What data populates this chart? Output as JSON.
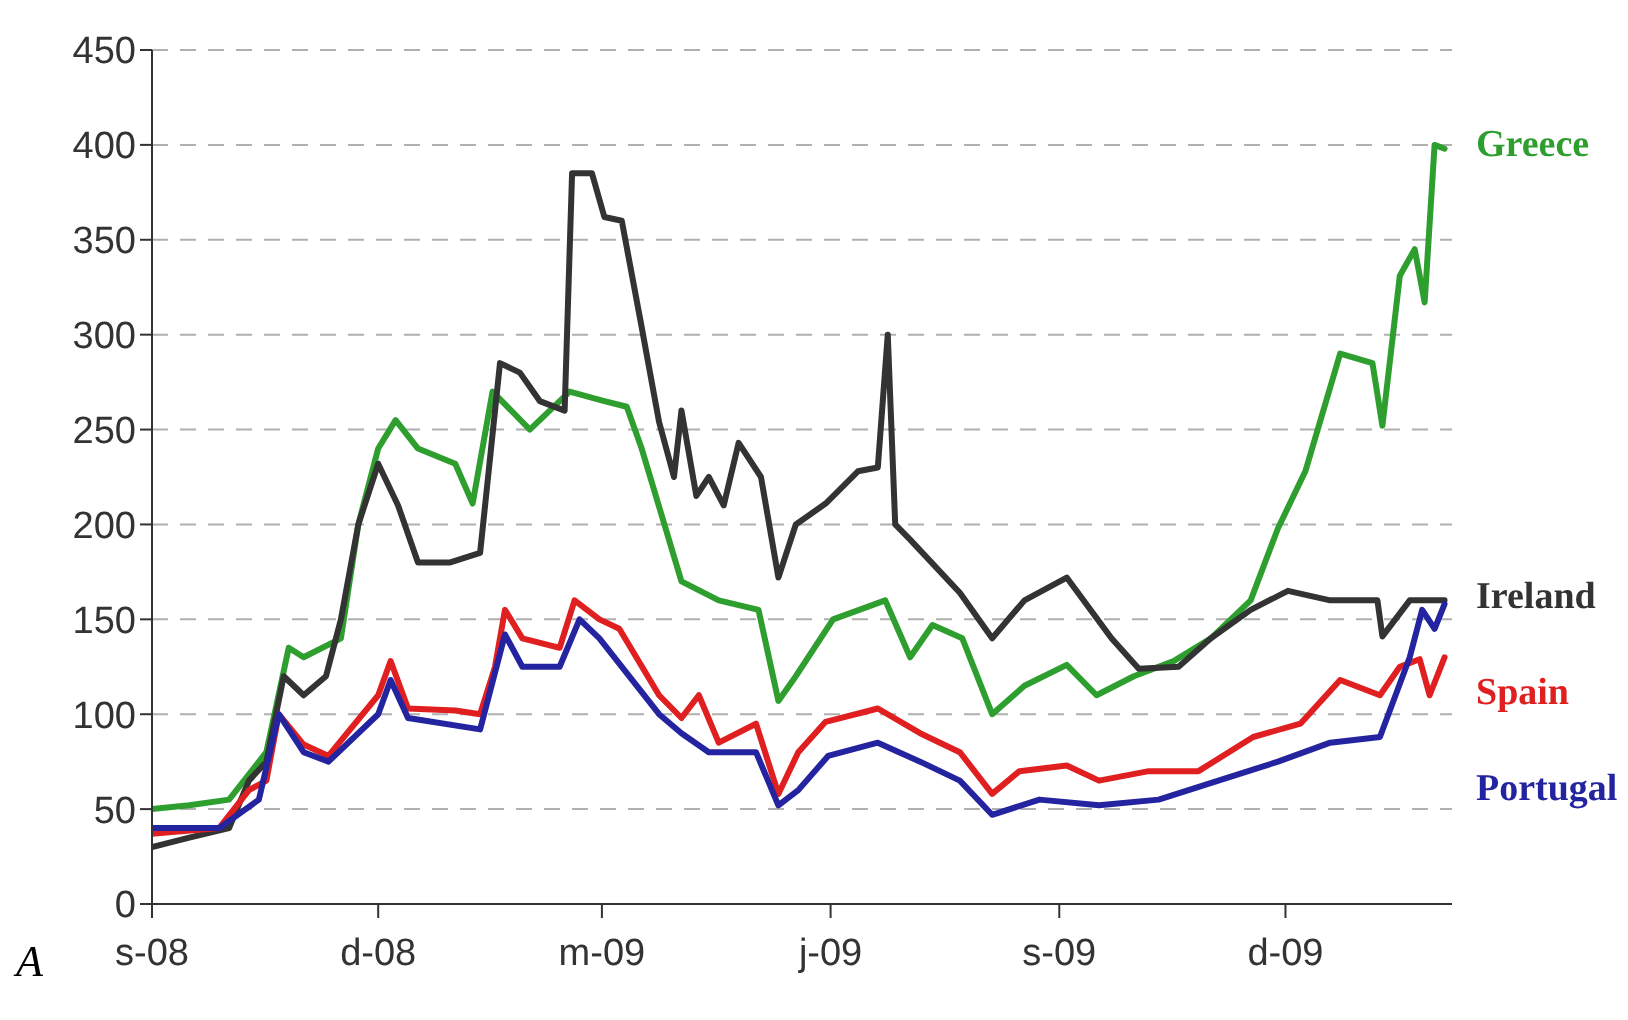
{
  "chart_data": {
    "type": "line",
    "annotations": [
      "A"
    ],
    "xlim": [
      "2008-09-01",
      "2010-02-06"
    ],
    "xticks": [
      {
        "value": "2008-09-01",
        "label": "s-08"
      },
      {
        "value": "2008-12-01",
        "label": "d-08"
      },
      {
        "value": "2009-03-01",
        "label": "m-09"
      },
      {
        "value": "2009-06-01",
        "label": "j-09"
      },
      {
        "value": "2009-09-01",
        "label": "s-09"
      },
      {
        "value": "2009-12-01",
        "label": "d-09"
      }
    ],
    "ylim": [
      0,
      450
    ],
    "yticks": [
      0,
      50,
      100,
      150,
      200,
      250,
      300,
      350,
      400,
      450
    ],
    "grid": "y",
    "line_style": "solid",
    "series": [
      {
        "name": "Greece",
        "color": "#2e9e2e",
        "x": [
          "2008-09-01",
          "2008-09-16",
          "2008-10-02",
          "2008-10-17",
          "2008-10-26",
          "2008-11-01",
          "2008-11-16",
          "2008-11-23",
          "2008-12-01",
          "2008-12-08",
          "2008-12-17",
          "2009-01-01",
          "2009-01-08",
          "2009-01-16",
          "2009-01-31",
          "2009-02-16",
          "2009-03-02",
          "2009-03-11",
          "2009-03-17",
          "2009-04-02",
          "2009-04-17",
          "2009-05-03",
          "2009-05-11",
          "2009-05-18",
          "2009-06-02",
          "2009-06-23",
          "2009-07-03",
          "2009-07-12",
          "2009-07-24",
          "2009-08-05",
          "2009-08-18",
          "2009-09-04",
          "2009-09-16",
          "2009-10-01",
          "2009-10-17",
          "2009-11-01",
          "2009-11-17",
          "2009-11-28",
          "2009-12-09",
          "2009-12-23",
          "2010-01-05",
          "2010-01-09",
          "2010-01-16",
          "2010-01-22",
          "2010-01-26",
          "2010-01-30",
          "2010-02-03"
        ],
        "values": [
          50,
          52,
          55,
          80,
          135,
          130,
          140,
          200,
          240,
          255,
          240,
          232,
          211,
          270,
          250,
          270,
          265,
          262,
          240,
          170,
          160,
          155,
          107,
          120,
          150,
          160,
          130,
          147,
          140,
          100,
          115,
          126,
          110,
          120,
          128,
          140,
          160,
          198,
          228,
          290,
          285,
          252,
          331,
          345,
          317,
          400,
          398
        ]
      },
      {
        "name": "Ireland",
        "color": "#333333",
        "x": [
          "2008-09-01",
          "2008-09-16",
          "2008-10-02",
          "2008-10-10",
          "2008-10-17",
          "2008-10-24",
          "2008-11-01",
          "2008-11-10",
          "2008-11-16",
          "2008-11-23",
          "2008-12-01",
          "2008-12-09",
          "2008-12-17",
          "2008-12-30",
          "2009-01-11",
          "2009-01-19",
          "2009-01-27",
          "2009-02-04",
          "2009-02-14",
          "2009-02-17",
          "2009-02-25",
          "2009-03-02",
          "2009-03-09",
          "2009-03-17",
          "2009-03-24",
          "2009-03-30",
          "2009-04-02",
          "2009-04-08",
          "2009-04-13",
          "2009-04-19",
          "2009-04-25",
          "2009-05-04",
          "2009-05-11",
          "2009-05-18",
          "2009-05-30",
          "2009-06-12",
          "2009-06-20",
          "2009-06-24",
          "2009-06-27",
          "2009-07-03",
          "2009-07-23",
          "2009-08-05",
          "2009-08-18",
          "2009-09-04",
          "2009-09-22",
          "2009-10-03",
          "2009-10-19",
          "2009-11-01",
          "2009-11-17",
          "2009-12-02",
          "2009-12-19",
          "2010-01-07",
          "2010-01-09",
          "2010-01-20",
          "2010-02-03"
        ],
        "values": [
          30,
          35,
          40,
          65,
          75,
          120,
          110,
          120,
          150,
          200,
          232,
          210,
          180,
          180,
          185,
          285,
          280,
          265,
          260,
          385,
          385,
          362,
          360,
          304,
          254,
          225,
          260,
          215,
          225,
          210,
          243,
          225,
          172,
          200,
          211,
          228,
          230,
          300,
          200,
          192,
          164,
          140,
          160,
          172,
          140,
          124,
          125,
          140,
          155,
          165,
          160,
          160,
          141,
          160,
          160
        ]
      },
      {
        "name": "Spain",
        "color": "#e02020",
        "x": [
          "2008-09-01",
          "2008-09-28",
          "2008-10-10",
          "2008-10-17",
          "2008-10-22",
          "2008-11-01",
          "2008-11-11",
          "2008-12-01",
          "2008-12-06",
          "2008-12-13",
          "2009-01-01",
          "2009-01-11",
          "2009-01-17",
          "2009-01-21",
          "2009-01-28",
          "2009-02-12",
          "2009-02-18",
          "2009-02-28",
          "2009-03-08",
          "2009-03-24",
          "2009-04-02",
          "2009-04-09",
          "2009-04-17",
          "2009-05-02",
          "2009-05-11",
          "2009-05-19",
          "2009-05-30",
          "2009-06-20",
          "2009-07-07",
          "2009-07-23",
          "2009-08-05",
          "2009-08-16",
          "2009-09-04",
          "2009-09-17",
          "2009-10-07",
          "2009-10-27",
          "2009-11-18",
          "2009-12-07",
          "2009-12-23",
          "2010-01-08",
          "2010-01-16",
          "2010-01-24",
          "2010-01-28",
          "2010-02-03"
        ],
        "values": [
          37,
          40,
          60,
          65,
          100,
          84,
          78,
          110,
          128,
          103,
          102,
          100,
          125,
          155,
          140,
          135,
          160,
          150,
          145,
          110,
          98,
          110,
          85,
          95,
          58,
          80,
          96,
          103,
          90,
          80,
          58,
          70,
          73,
          65,
          70,
          70,
          88,
          95,
          118,
          110,
          125,
          129,
          110,
          130
        ]
      },
      {
        "name": "Portugal",
        "color": "#2424a0",
        "x": [
          "2008-09-01",
          "2008-09-28",
          "2008-10-14",
          "2008-10-22",
          "2008-11-01",
          "2008-11-11",
          "2008-12-01",
          "2008-12-06",
          "2008-12-13",
          "2009-01-11",
          "2009-01-21",
          "2009-01-28",
          "2009-02-12",
          "2009-02-20",
          "2009-02-28",
          "2009-03-24",
          "2009-04-02",
          "2009-04-13",
          "2009-05-02",
          "2009-05-11",
          "2009-05-19",
          "2009-05-31",
          "2009-06-20",
          "2009-07-07",
          "2009-07-23",
          "2009-08-05",
          "2009-08-24",
          "2009-09-17",
          "2009-10-11",
          "2009-11-04",
          "2009-11-28",
          "2009-12-19",
          "2010-01-08",
          "2010-01-20",
          "2010-01-25",
          "2010-01-30",
          "2010-02-03"
        ],
        "values": [
          40,
          40,
          55,
          100,
          80,
          75,
          100,
          118,
          98,
          92,
          142,
          125,
          125,
          150,
          140,
          100,
          90,
          80,
          80,
          52,
          60,
          78,
          85,
          75,
          65,
          47,
          55,
          52,
          55,
          65,
          75,
          85,
          88,
          130,
          155,
          145,
          158
        ]
      }
    ]
  }
}
